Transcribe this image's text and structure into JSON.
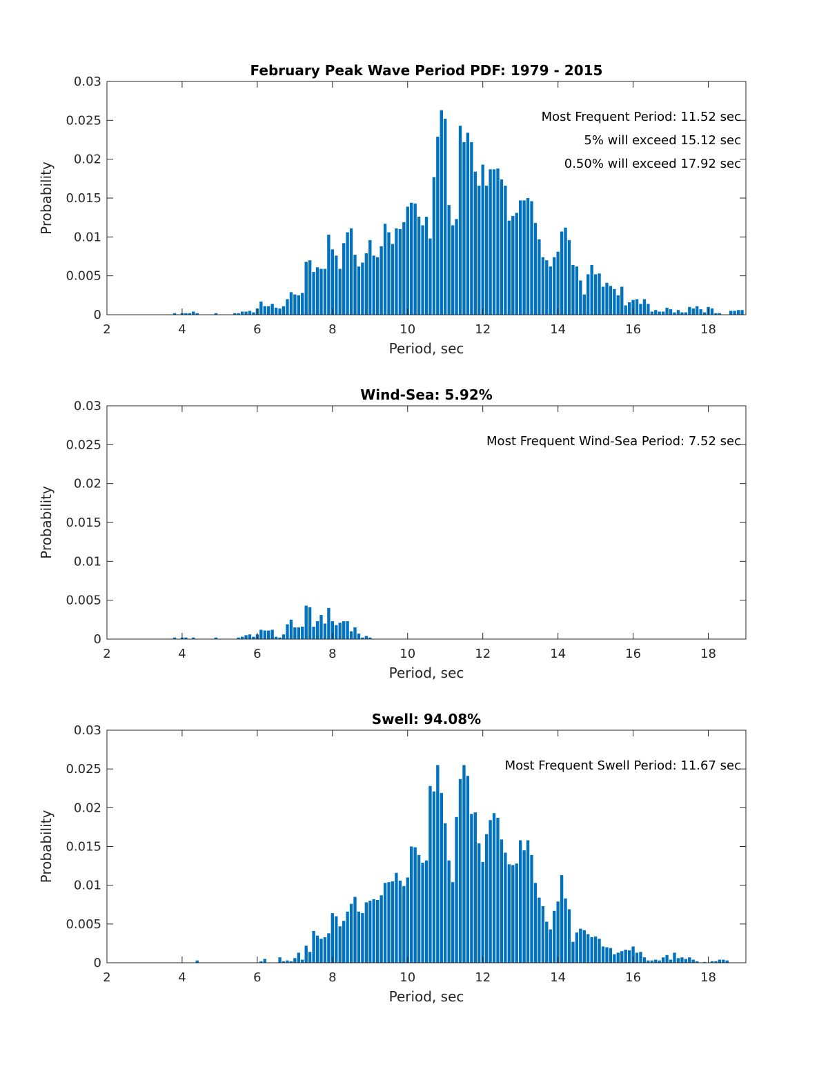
{
  "chart_data": [
    {
      "type": "bar",
      "title": "February Peak Wave Period PDF: 1979 - 2015",
      "xlabel": "Period, sec",
      "ylabel": "Probability",
      "xlim": [
        2,
        19
      ],
      "ylim": [
        0,
        0.03
      ],
      "xticks": [
        "2",
        "4",
        "6",
        "8",
        "10",
        "12",
        "14",
        "16",
        "18"
      ],
      "yticks": [
        "0",
        "0.005",
        "0.01",
        "0.015",
        "0.02",
        "0.025",
        "0.03"
      ],
      "grid": false,
      "annotations": [
        "Most Frequent Period: 11.52 sec",
        "5% will exceed 15.12 sec",
        "0.50% will exceed 17.92 sec"
      ],
      "x_start": 3.8,
      "x_step": 0.1,
      "values": [
        0.0002,
        0,
        0.0002,
        0.0002,
        0.0002,
        0.0004,
        0.0002,
        0,
        0,
        0,
        0,
        0.0002,
        0,
        0,
        0,
        0,
        0.0002,
        0.0002,
        0.0004,
        0.0004,
        0.0005,
        0.0003,
        0.0008,
        0.0017,
        0.0011,
        0.0011,
        0.0014,
        0.0009,
        0.0008,
        0.0011,
        0.002,
        0.0029,
        0.0026,
        0.0025,
        0.0028,
        0.0068,
        0.007,
        0.0055,
        0.0061,
        0.0059,
        0.0059,
        0.0103,
        0.0084,
        0.0076,
        0.0059,
        0.0092,
        0.0106,
        0.0111,
        0.0077,
        0.0062,
        0.0067,
        0.0079,
        0.0096,
        0.0076,
        0.0074,
        0.0088,
        0.0117,
        0.0106,
        0.0091,
        0.0111,
        0.011,
        0.0119,
        0.0139,
        0.0144,
        0.0143,
        0.0126,
        0.0115,
        0.0126,
        0.0098,
        0.0177,
        0.0229,
        0.0263,
        0.0252,
        0.0141,
        0.0115,
        0.0123,
        0.0243,
        0.0222,
        0.0234,
        0.0222,
        0.0184,
        0.0166,
        0.0193,
        0.0166,
        0.0187,
        0.0187,
        0.0188,
        0.0174,
        0.0166,
        0.0121,
        0.0127,
        0.0131,
        0.0147,
        0.0147,
        0.015,
        0.0146,
        0.0118,
        0.0097,
        0.0074,
        0.007,
        0.0062,
        0.0074,
        0.0081,
        0.0107,
        0.0112,
        0.0096,
        0.0064,
        0.0062,
        0.0044,
        0.0026,
        0.0052,
        0.0064,
        0.0052,
        0.0053,
        0.0036,
        0.0041,
        0.0037,
        0.0033,
        0.0025,
        0.0036,
        0.0012,
        0.0016,
        0.0019,
        0.002,
        0.0014,
        0.002,
        0.0014,
        0.0004,
        0.0006,
        0.0004,
        0.0004,
        0.0009,
        0.0007,
        0.0003,
        0.0006,
        0.0003,
        0.0003,
        0.001,
        0.0008,
        0.0011,
        0.0007,
        0.0003,
        0.001,
        0.0008,
        0.0002,
        0.0002,
        0,
        0,
        0.0005,
        0.0005,
        0.0006,
        0.0006
      ]
    },
    {
      "type": "bar",
      "title": "Wind-Sea: 5.92%",
      "xlabel": "Period, sec",
      "ylabel": "Probability",
      "xlim": [
        2,
        19
      ],
      "ylim": [
        0,
        0.03
      ],
      "xticks": [
        "2",
        "4",
        "6",
        "8",
        "10",
        "12",
        "14",
        "16",
        "18"
      ],
      "yticks": [
        "0",
        "0.005",
        "0.01",
        "0.015",
        "0.02",
        "0.025",
        "0.03"
      ],
      "grid": false,
      "annotations": [
        "Most Frequent Wind-Sea Period: 7.52 sec"
      ],
      "x_start": 3.8,
      "x_step": 0.1,
      "values": [
        0.0002,
        0,
        0.0002,
        0.0002,
        0,
        0.0002,
        0,
        0,
        0,
        0,
        0,
        0.0002,
        0,
        0,
        0,
        0,
        0,
        0.0002,
        0.0003,
        0.0005,
        0.0006,
        0.0003,
        0.0006,
        0.0012,
        0.0011,
        0.0011,
        0.0012,
        0.0003,
        0.0002,
        0.0006,
        0.0019,
        0.0025,
        0.0015,
        0.0015,
        0.0016,
        0.0043,
        0.0041,
        0.0016,
        0.0023,
        0.0031,
        0.002,
        0.004,
        0.0023,
        0.0018,
        0.0021,
        0.0023,
        0.0023,
        0.001,
        0.0015,
        0.0007,
        0.0002,
        0.0004,
        0.0002
      ]
    },
    {
      "type": "bar",
      "title": "Swell: 94.08%",
      "xlabel": "Period, sec",
      "ylabel": "Probability",
      "xlim": [
        2,
        19
      ],
      "ylim": [
        0,
        0.03
      ],
      "xticks": [
        "2",
        "4",
        "6",
        "8",
        "10",
        "12",
        "14",
        "16",
        "18"
      ],
      "yticks": [
        "0",
        "0.005",
        "0.01",
        "0.015",
        "0.02",
        "0.025",
        "0.03"
      ],
      "grid": false,
      "annotations": [
        "Most Frequent Swell Period: 11.67 sec"
      ],
      "x_start": 4.4,
      "x_step": 0.1,
      "values": [
        0.0003,
        0,
        0,
        0,
        0,
        0,
        0,
        0,
        0,
        0,
        0,
        0,
        0,
        0,
        0,
        0,
        0,
        0.0002,
        0.0005,
        0,
        0,
        0,
        0.0007,
        0.0002,
        0.0003,
        0.0002,
        0.0006,
        0.0013,
        0.0004,
        0.0022,
        0.0014,
        0.0041,
        0.0035,
        0.0031,
        0.0033,
        0.0038,
        0.0064,
        0.006,
        0.0047,
        0.0054,
        0.0066,
        0.0076,
        0.0085,
        0.0066,
        0.0064,
        0.0078,
        0.008,
        0.0082,
        0.0081,
        0.0087,
        0.0103,
        0.0104,
        0.0105,
        0.0116,
        0.0106,
        0.0099,
        0.011,
        0.015,
        0.0149,
        0.0139,
        0.0129,
        0.0132,
        0.0228,
        0.0221,
        0.0255,
        0.0219,
        0.018,
        0.0132,
        0.0104,
        0.0188,
        0.0237,
        0.0255,
        0.0241,
        0.0192,
        0.0194,
        0.0154,
        0.013,
        0.0166,
        0.0184,
        0.0193,
        0.0187,
        0.0159,
        0.0142,
        0.0127,
        0.0126,
        0.0128,
        0.0158,
        0.0145,
        0.0158,
        0.0139,
        0.0103,
        0.0084,
        0.0073,
        0.0053,
        0.0043,
        0.0067,
        0.0079,
        0.0113,
        0.0083,
        0.0069,
        0.0027,
        0.0039,
        0.0044,
        0.0042,
        0.0037,
        0.0033,
        0.0034,
        0.0031,
        0.0021,
        0.002,
        0.0019,
        0.0011,
        0.0013,
        0.0015,
        0.0017,
        0.0016,
        0.0021,
        0.0013,
        0.0014,
        0.0007,
        0.0003,
        0.0003,
        0.0004,
        0.0003,
        0.0007,
        0.001,
        0.0004,
        0.0013,
        0.0006,
        0.0007,
        0.0005,
        0.0007,
        0.0004,
        0.0002,
        0,
        0.0001,
        0,
        0.0002,
        0.0002,
        0.0004,
        0.0004,
        0.0003
      ]
    }
  ]
}
